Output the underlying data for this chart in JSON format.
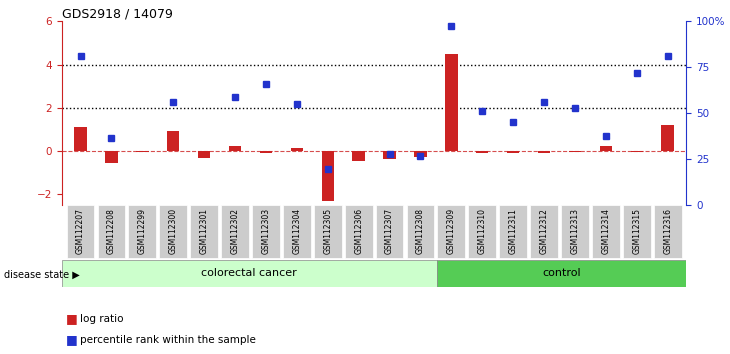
{
  "title": "GDS2918 / 14079",
  "samples": [
    "GSM112207",
    "GSM112208",
    "GSM112299",
    "GSM112300",
    "GSM112301",
    "GSM112302",
    "GSM112303",
    "GSM112304",
    "GSM112305",
    "GSM112306",
    "GSM112307",
    "GSM112308",
    "GSM112309",
    "GSM112310",
    "GSM112311",
    "GSM112312",
    "GSM112313",
    "GSM112314",
    "GSM112315",
    "GSM112316"
  ],
  "log_ratio": [
    1.1,
    -0.55,
    -0.05,
    0.95,
    -0.3,
    0.25,
    -0.1,
    0.15,
    -2.3,
    -0.45,
    -0.35,
    -0.25,
    4.5,
    -0.1,
    -0.1,
    -0.1,
    -0.05,
    0.25,
    -0.05,
    1.2
  ],
  "percentile_rank": [
    4.4,
    0.6,
    null,
    2.25,
    null,
    2.5,
    3.1,
    2.2,
    -0.8,
    null,
    -0.15,
    -0.2,
    5.8,
    1.85,
    1.35,
    2.25,
    2.0,
    0.7,
    3.6,
    4.4
  ],
  "colorectal_cancer_range": [
    0,
    11
  ],
  "control_range": [
    12,
    19
  ],
  "ylim": [
    -2.5,
    6.0
  ],
  "yticks_left": [
    -2,
    0,
    2,
    4,
    6
  ],
  "yticks_right": [
    0,
    25,
    50,
    75,
    100
  ],
  "right_axis_labels": [
    "0",
    "25",
    "50",
    "75",
    "100%"
  ],
  "hlines_dotted": [
    2,
    4
  ],
  "bar_color": "#cc2222",
  "dot_color": "#2233cc",
  "cancer_fill": "#ccffcc",
  "control_fill": "#55cc55",
  "label_log_ratio": "log ratio",
  "label_percentile": "percentile rank within the sample",
  "bg_color": "#ffffff"
}
